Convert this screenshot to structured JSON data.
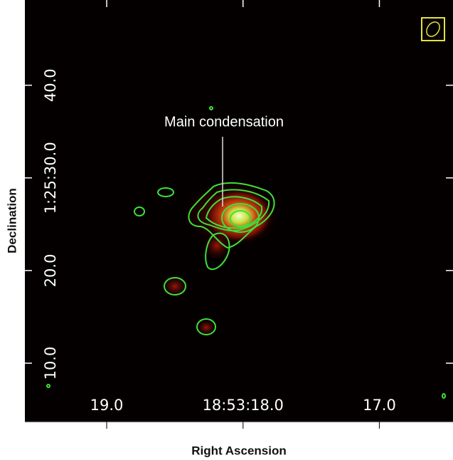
{
  "chart_data": {
    "type": "image",
    "x_label": "Right Ascension",
    "y_label": "Declination",
    "annotation": "Main condensation",
    "xlim": [
      19.6,
      16.46
    ],
    "xticks": [
      {
        "value": 19,
        "label": "19.0"
      },
      {
        "value": 18,
        "label": "18:53:18.0"
      },
      {
        "value": 17,
        "label": "17.0"
      }
    ],
    "ylim": [
      3.7,
      49.2
    ],
    "yticks": [
      {
        "value": 10,
        "label": "10.0"
      },
      {
        "value": 20,
        "label": "20.0"
      },
      {
        "value": 30,
        "label": "1:25:30.0"
      },
      {
        "value": 40,
        "label": "40.0"
      }
    ]
  }
}
